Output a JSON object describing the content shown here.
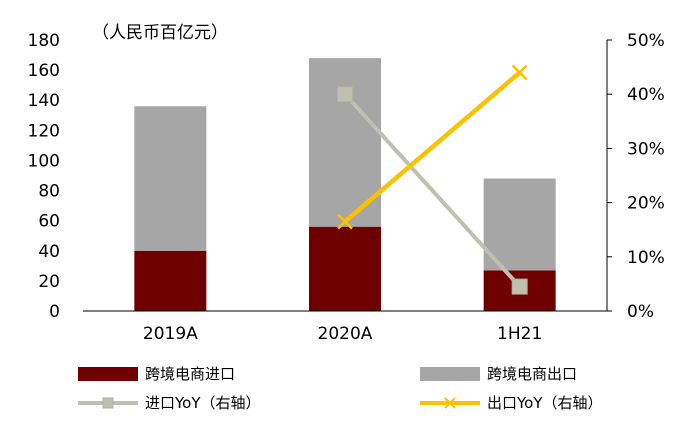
{
  "chart_data": {
    "type": "bar",
    "unit_label": "（人民币百亿元）",
    "categories": [
      "2019A",
      "2020A",
      "1H21"
    ],
    "left_axis": {
      "ylim": [
        0,
        180
      ],
      "ticks": [
        "0",
        "20",
        "40",
        "60",
        "80",
        "100",
        "120",
        "140",
        "160",
        "180"
      ]
    },
    "right_axis": {
      "ylim": [
        0,
        50
      ],
      "ticks": [
        "0%",
        "10%",
        "20%",
        "30%",
        "40%",
        "50%"
      ]
    },
    "series": [
      {
        "name": "跨境电商进口",
        "kind": "stacked-bar",
        "axis": "left",
        "color": "#6e0000",
        "values": [
          40,
          56,
          27
        ]
      },
      {
        "name": "跨境电商出口",
        "kind": "stacked-bar",
        "axis": "left",
        "color": "#a6a6a6",
        "values": [
          96,
          112,
          61
        ]
      },
      {
        "name": "进口YoY（右轴）",
        "kind": "line",
        "axis": "right",
        "color": "#c0c0b0",
        "marker": "square",
        "values": [
          null,
          40,
          4.5
        ]
      },
      {
        "name": "出口YoY（右轴）",
        "kind": "line",
        "axis": "right",
        "color": "#ffc000",
        "marker": "x",
        "values": [
          null,
          16.5,
          44
        ]
      }
    ],
    "grid": false,
    "legend_position": "bottom"
  }
}
